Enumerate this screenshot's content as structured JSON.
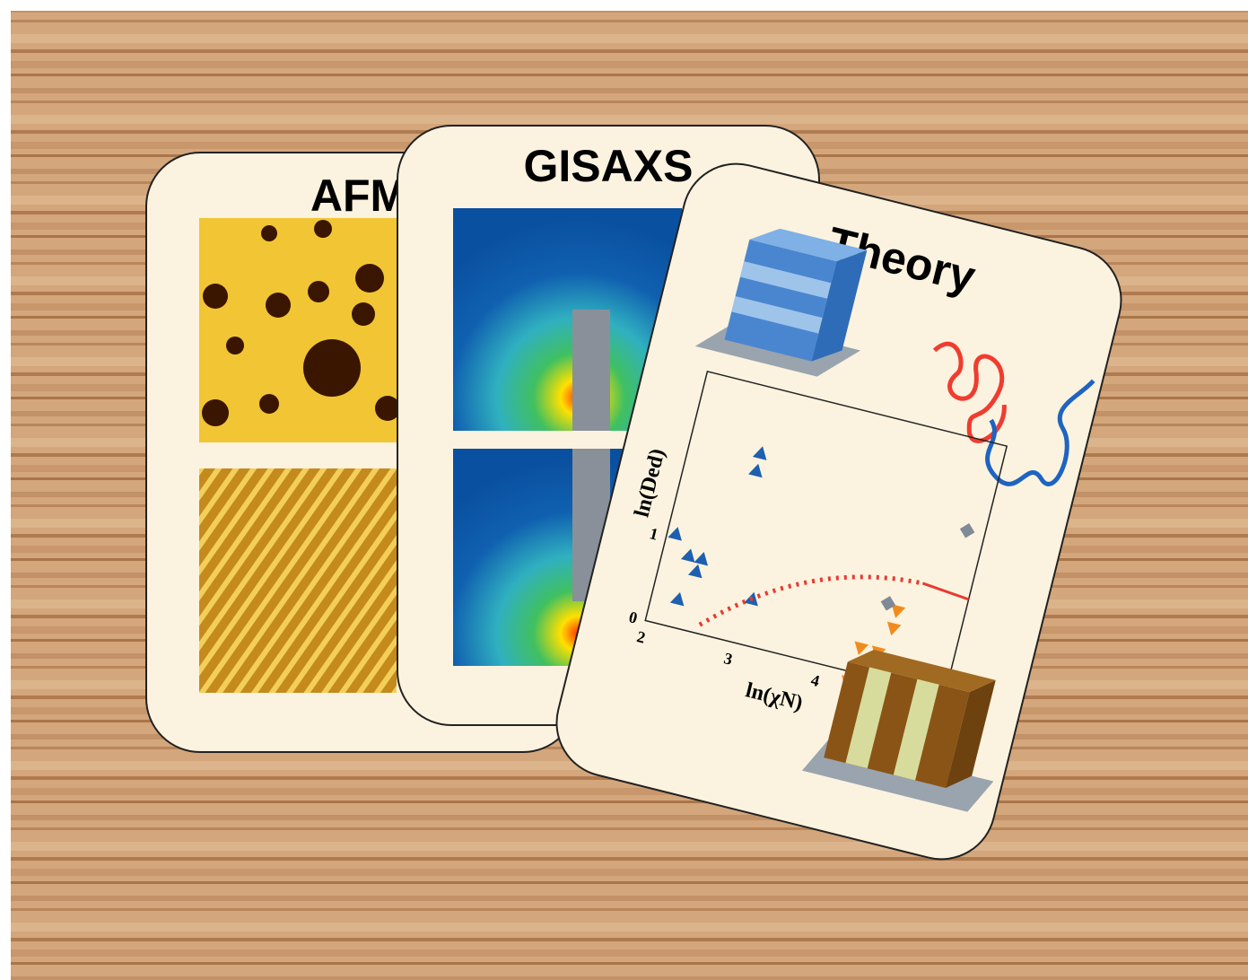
{
  "cards": [
    {
      "title": "AFM"
    },
    {
      "title": "GISAXS"
    },
    {
      "title": "Theory",
      "plot": {
        "x_label": "ln(χN)",
        "y_label": "ln(Ded)",
        "xtick_labels": [
          "2",
          "3",
          "4"
        ],
        "ytick_labels": [
          "0",
          "1"
        ]
      }
    }
  ]
}
